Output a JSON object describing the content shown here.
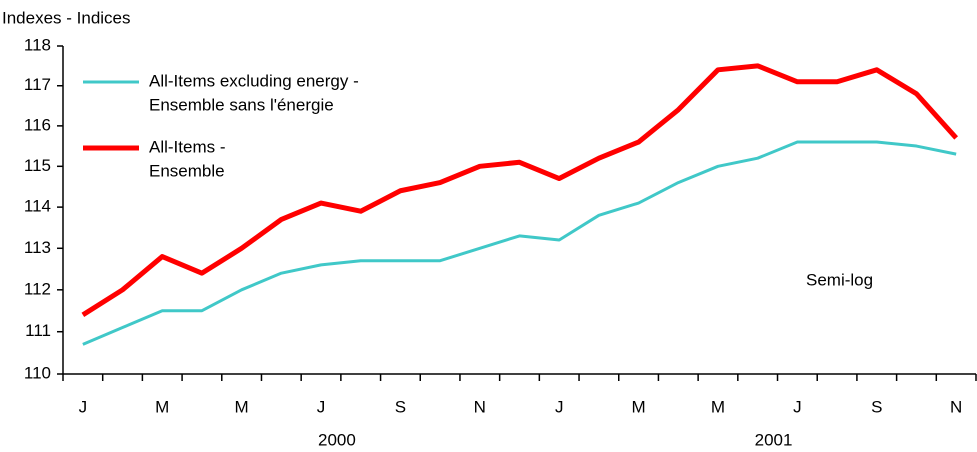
{
  "chart_data": {
    "type": "line",
    "y_label": "Indexes - Indices",
    "annotation": "Semi-log",
    "categories": [
      "J",
      null,
      "M",
      null,
      "M",
      null,
      "J",
      null,
      "S",
      null,
      "N",
      null,
      "J",
      null,
      "M",
      null,
      "M",
      null,
      "J",
      null,
      "S",
      null,
      "N"
    ],
    "years": [
      "2000",
      "2001"
    ],
    "series": [
      {
        "name": [
          "All-Items excluding energy -",
          "Ensemble sans l'énergie"
        ],
        "color": "#40c8c8",
        "values": [
          110.7,
          111.1,
          111.5,
          111.5,
          112.0,
          112.4,
          112.6,
          112.7,
          112.7,
          112.7,
          113.0,
          113.3,
          113.2,
          113.8,
          114.1,
          114.6,
          115.0,
          115.2,
          115.6,
          115.6,
          115.6,
          115.5,
          115.3
        ]
      },
      {
        "name": [
          "All-Items -",
          "Ensemble"
        ],
        "color": "#ff0000",
        "values": [
          111.4,
          112.0,
          112.8,
          112.4,
          113.0,
          113.7,
          114.1,
          113.9,
          114.4,
          114.6,
          115.0,
          115.1,
          114.7,
          115.2,
          115.6,
          116.4,
          117.4,
          117.5,
          117.1,
          117.1,
          117.4,
          116.8,
          115.7
        ]
      }
    ],
    "ylim": [
      110,
      118
    ],
    "yticks": [
      110,
      111,
      112,
      113,
      114,
      115,
      116,
      117,
      118
    ],
    "log_scale": true
  }
}
